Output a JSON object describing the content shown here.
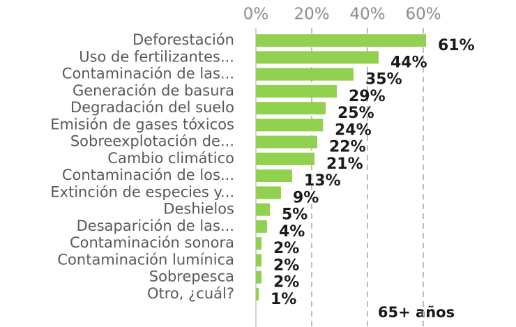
{
  "chart_data": {
    "type": "bar",
    "orientation": "horizontal",
    "subtitle": "65+ años",
    "categories": [
      "Deforestación",
      "Uso de fertilizantes...",
      "Contaminación de las...",
      "Generación de basura",
      "Degradación del suelo",
      "Emisión de gases tóxicos",
      "Sobreexplotación de...",
      "Cambio climático",
      "Contaminación de los...",
      "Extinción de especies y...",
      "Deshielos",
      "Desaparición de las...",
      "Contaminación sonora",
      "Contaminación lumínica",
      "Sobrepesca",
      "Otro, ¿cuál?"
    ],
    "values": [
      61,
      44,
      35,
      29,
      25,
      24,
      22,
      21,
      13,
      9,
      5,
      4,
      2,
      2,
      2,
      1
    ],
    "value_labels": [
      "61%",
      "44%",
      "35%",
      "29%",
      "25%",
      "24%",
      "22%",
      "21%",
      "13%",
      "9%",
      "5%",
      "4%",
      "2%",
      "2%",
      "2%",
      "1%"
    ],
    "color": "#92d050",
    "xlim": [
      0,
      60
    ],
    "xticks": [
      {
        "value": 0,
        "label": "0%"
      },
      {
        "value": 20,
        "label": "20%"
      },
      {
        "value": 40,
        "label": "40%"
      },
      {
        "value": 60,
        "label": "60%"
      }
    ],
    "grid": true
  }
}
